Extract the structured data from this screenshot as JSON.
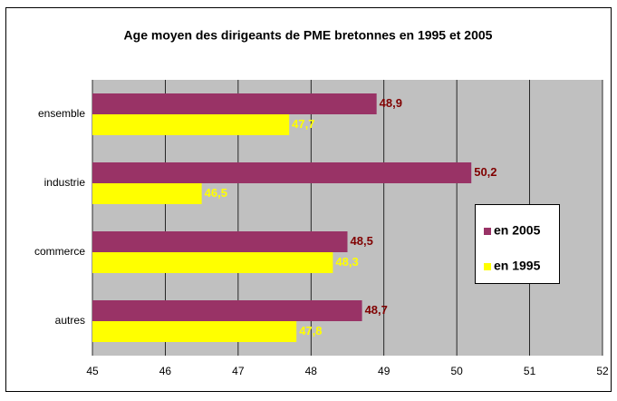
{
  "chart_data": {
    "type": "hbar",
    "title": "Age moyen des dirigeants de PME bretonnes en 1995 et 2005",
    "categories": [
      "ensemble",
      "industrie",
      "commerce",
      "autres"
    ],
    "series": [
      {
        "name": "en 2005",
        "color": "#993366",
        "label_color": "#800000",
        "values": [
          48.9,
          50.2,
          48.5,
          48.7
        ],
        "value_labels": [
          "48,9",
          "50,2",
          "48,5",
          "48,7"
        ]
      },
      {
        "name": "en 1995",
        "color": "#ffff00",
        "label_color": "#ffff00",
        "values": [
          47.7,
          46.5,
          48.3,
          47.8
        ],
        "value_labels": [
          "47,7",
          "46,5",
          "48,3",
          "47,8"
        ]
      }
    ],
    "xlim": [
      45,
      52
    ],
    "xticks": [
      45,
      46,
      47,
      48,
      49,
      50,
      51,
      52
    ],
    "grid": true,
    "plot_background": "#c0c0c0"
  }
}
